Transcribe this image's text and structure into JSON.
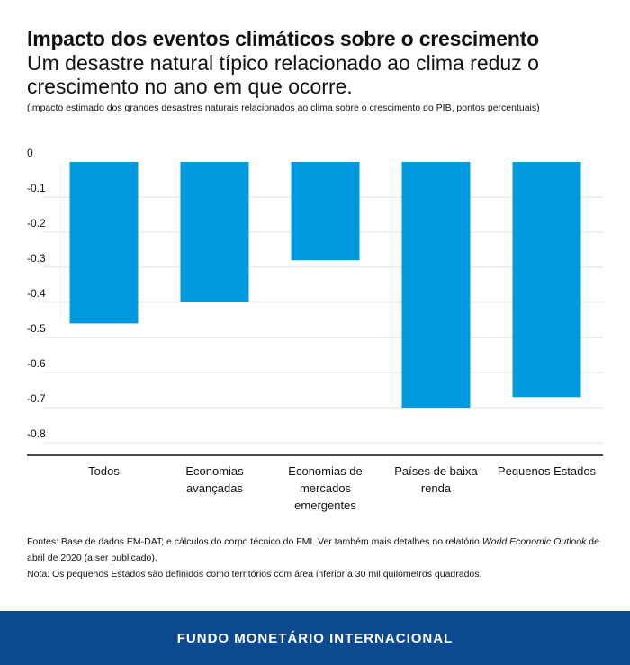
{
  "header": {
    "title": "Impacto dos eventos climáticos sobre o crescimento",
    "subtitle": "Um desastre natural típico relacionado ao clima reduz o crescimento no ano em que ocorre.",
    "note": "(impacto estimado dos grandes desastres naturais relacionados ao clima sobre o crescimento do PIB, pontos percentuais)"
  },
  "chart_data": {
    "type": "bar",
    "categories": [
      [
        "Todos"
      ],
      [
        "Economias",
        "avançadas"
      ],
      [
        "Economias de",
        "mercados",
        "emergentes"
      ],
      [
        "Países de baixa",
        "renda"
      ],
      [
        "Pequenos Estados"
      ]
    ],
    "values": [
      -0.46,
      -0.4,
      -0.28,
      -0.7,
      -0.67
    ],
    "ylim": [
      -0.8,
      0
    ],
    "yticks": [
      0,
      -0.1,
      -0.2,
      -0.3,
      -0.4,
      -0.5,
      -0.6,
      -0.7,
      -0.8
    ],
    "ytick_labels": [
      "0",
      "-0.1",
      "-0.2",
      "-0.3",
      "-0.4",
      "-0.5",
      "-0.6",
      "-0.7",
      "-0.8"
    ],
    "bar_color": "#0099dd",
    "grid": true,
    "xlabel": "",
    "ylabel": ""
  },
  "footnotes": {
    "source_prefix": "Fontes: Base de dados EM-DAT; e cálculos do corpo técnico do FMI. Ver também mais detalhes no relatório ",
    "source_italic": "World Economic Outlook",
    "source_suffix": " de abril de 2020 (a ser publicado).",
    "note": "Nota: Os pequenos Estados são definidos como territórios com área inferior a 30 mil quilômetros quadrados."
  },
  "footer": {
    "org": "FUNDO MONETÁRIO INTERNACIONAL",
    "background": "#0b4a8f"
  }
}
